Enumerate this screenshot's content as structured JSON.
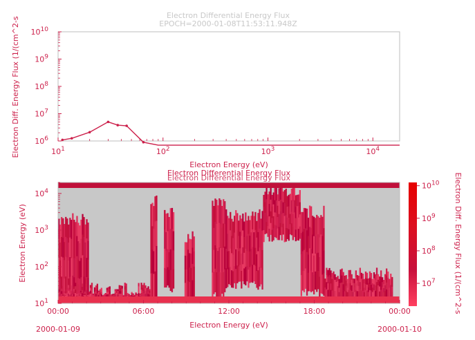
{
  "colors": {
    "accent": "#cc1f4a",
    "title": "#c8c8c8",
    "axis_frame": "#bdbdbd",
    "spectrogram_bg": "#c8c8c8",
    "colorbar_top": "#e60000",
    "colorbar_bottom": "#ff4060"
  },
  "chart_data": [
    {
      "type": "line",
      "title": "Electron Differential Energy Flux",
      "subtitle": "EPOCH=2000-01-08T11:53:11.948Z",
      "xlabel": "Electron Energy (eV)",
      "ylabel": "Electron Diff. Energy Flux (1/(cm^2-s",
      "xscale": "log",
      "yscale": "log",
      "xlim": [
        10,
        18000
      ],
      "ylim": [
        1000000,
        10000000000
      ],
      "x_ticks": [
        "10",
        "10",
        "10",
        "10"
      ],
      "x_tick_exp": [
        "1",
        "2",
        "3",
        "4"
      ],
      "y_ticks": [
        "10",
        "10",
        "10",
        "10",
        "10"
      ],
      "y_tick_exp": [
        "10",
        "9",
        "8",
        "7",
        "6"
      ],
      "series": [
        {
          "x": [
            11,
            13.5,
            20,
            30,
            37,
            45,
            65,
            90,
            130,
            200,
            350,
            600,
            1000,
            2000,
            5000,
            10000,
            18000
          ],
          "y": [
            1100000,
            1250000,
            2100000,
            5000000,
            3800000,
            3600000,
            900000,
            700000,
            700000,
            700000,
            700000,
            700000,
            700000,
            700000,
            700000,
            700000,
            700000
          ]
        }
      ]
    },
    {
      "type": "heatmap",
      "title": "Electron Differential Energy Flux",
      "ylabel": "Electron Energy (eV)",
      "xlabel": "Electron Energy (eV)",
      "yscale": "log",
      "ylim": [
        10,
        20000
      ],
      "x_tick_labels": [
        {
          "time": "00:00",
          "date": "2000-01-09"
        },
        {
          "time": "06:00",
          "date": ""
        },
        {
          "time": "12:00",
          "date": ""
        },
        {
          "time": "18:00",
          "date": ""
        },
        {
          "time": "00:00",
          "date": "2000-01-10"
        }
      ],
      "y_ticks": [
        "10",
        "10",
        "10",
        "10"
      ],
      "y_tick_exp": [
        "1",
        "2",
        "3",
        "4"
      ],
      "colorbar": {
        "label": "Electron Diff. Energy Flux (1/(cm^2-s",
        "ticks": [
          "10",
          "10",
          "10",
          "10"
        ],
        "tick_exp": [
          "10",
          "9",
          "8",
          "7"
        ]
      },
      "episodes": [
        {
          "t0": 0.0,
          "t1": 0.09,
          "lo": 1.0,
          "hi": 3.3
        },
        {
          "t0": 0.0,
          "t1": 0.27,
          "lo": 1.0,
          "hi": 1.4
        },
        {
          "t0": 0.27,
          "t1": 0.29,
          "lo": 1.0,
          "hi": 3.8
        },
        {
          "t0": 0.31,
          "t1": 0.34,
          "lo": 1.4,
          "hi": 3.5
        },
        {
          "t0": 0.37,
          "t1": 0.4,
          "lo": 1.0,
          "hi": 2.8
        },
        {
          "t0": 0.45,
          "t1": 0.49,
          "lo": 1.2,
          "hi": 3.8
        },
        {
          "t0": 0.49,
          "t1": 0.6,
          "lo": 1.5,
          "hi": 3.4
        },
        {
          "t0": 0.6,
          "t1": 0.71,
          "lo": 2.8,
          "hi": 4.1
        },
        {
          "t0": 0.71,
          "t1": 0.78,
          "lo": 1.3,
          "hi": 3.5
        },
        {
          "t0": 0.78,
          "t1": 0.98,
          "lo": 1.0,
          "hi": 1.8
        }
      ]
    }
  ]
}
